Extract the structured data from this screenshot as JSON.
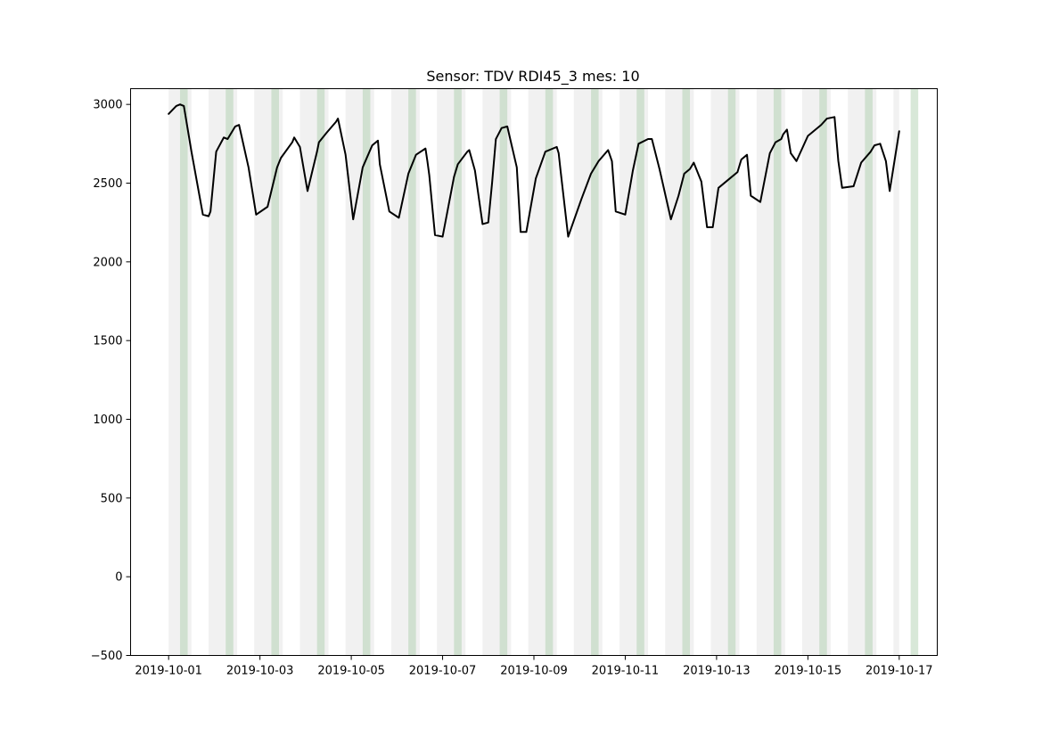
{
  "chart_data": {
    "type": "line",
    "title": "Sensor: TDV RDI45_3 mes: 10",
    "xlabel": "",
    "ylabel": "",
    "xlim": [
      "2019-10-00 04:00",
      "2019-10-17 20:00"
    ],
    "ylim": [
      -500,
      3100
    ],
    "x_ticks": [
      "2019-10-01",
      "2019-10-03",
      "2019-10-05",
      "2019-10-07",
      "2019-10-09",
      "2019-10-11",
      "2019-10-13",
      "2019-10-15",
      "2019-10-17"
    ],
    "y_ticks": [
      -500,
      0,
      500,
      1000,
      1500,
      2000,
      2500,
      3000
    ],
    "grid": false,
    "legend": "none",
    "series": [
      {
        "color": "#000000",
        "x": [
          "2019-10-01 00:00",
          "2019-10-01 04:00",
          "2019-10-01 06:00",
          "2019-10-01 08:00",
          "2019-10-01 12:00",
          "2019-10-01 18:00",
          "2019-10-01 21:00",
          "2019-10-01 22:00",
          "2019-10-02 01:00",
          "2019-10-02 05:00",
          "2019-10-02 07:00",
          "2019-10-02 11:00",
          "2019-10-02 13:00",
          "2019-10-02 18:00",
          "2019-10-02 20:00",
          "2019-10-02 22:00",
          "2019-10-03 04:00",
          "2019-10-03 09:00",
          "2019-10-03 11:00",
          "2019-10-03 17:00",
          "2019-10-03 18:00",
          "2019-10-03 21:00",
          "2019-10-04 01:00",
          "2019-10-04 06:00",
          "2019-10-04 07:00",
          "2019-10-04 11:00",
          "2019-10-04 16:00",
          "2019-10-04 17:00",
          "2019-10-04 21:00",
          "2019-10-05 01:00",
          "2019-10-05 06:00",
          "2019-10-05 11:00",
          "2019-10-05 14:00",
          "2019-10-05 15:00",
          "2019-10-05 20:00",
          "2019-10-06 01:00",
          "2019-10-06 06:00",
          "2019-10-06 10:00",
          "2019-10-06 15:00",
          "2019-10-06 16:00",
          "2019-10-06 17:00",
          "2019-10-06 20:00",
          "2019-10-07 00:00",
          "2019-10-07 06:00",
          "2019-10-07 08:00",
          "2019-10-07 13:00",
          "2019-10-07 14:00",
          "2019-10-07 17:00",
          "2019-10-07 21:00",
          "2019-10-08 00:00",
          "2019-10-08 02:00",
          "2019-10-08 04:00",
          "2019-10-08 07:00",
          "2019-10-08 10:00",
          "2019-10-08 15:00",
          "2019-10-08 17:00",
          "2019-10-08 20:00",
          "2019-10-09 01:00",
          "2019-10-09 06:00",
          "2019-10-09 12:00",
          "2019-10-09 13:00",
          "2019-10-09 14:00",
          "2019-10-09 18:00",
          "2019-10-10 01:00",
          "2019-10-10 06:00",
          "2019-10-10 10:00",
          "2019-10-10 15:00",
          "2019-10-10 17:00",
          "2019-10-10 19:00",
          "2019-10-11 00:00",
          "2019-10-11 04:00",
          "2019-10-11 07:00",
          "2019-10-11 12:00",
          "2019-10-11 14:00",
          "2019-10-11 18:00",
          "2019-10-12 00:00",
          "2019-10-12 04:00",
          "2019-10-12 07:00",
          "2019-10-12 10:00",
          "2019-10-12 12:00",
          "2019-10-12 16:00",
          "2019-10-12 19:00",
          "2019-10-12 22:00",
          "2019-10-13 01:00",
          "2019-10-13 07:00",
          "2019-10-13 11:00",
          "2019-10-13 13:00",
          "2019-10-13 16:00",
          "2019-10-13 18:00",
          "2019-10-13 23:00",
          "2019-10-14 04:00",
          "2019-10-14 07:00",
          "2019-10-14 10:00",
          "2019-10-14 11:00",
          "2019-10-14 13:00",
          "2019-10-14 15:00",
          "2019-10-14 18:00",
          "2019-10-15 00:00",
          "2019-10-15 07:00",
          "2019-10-15 10:00",
          "2019-10-15 14:00",
          "2019-10-15 16:00",
          "2019-10-15 18:00",
          "2019-10-16 00:00",
          "2019-10-16 04:00",
          "2019-10-16 09:00",
          "2019-10-16 11:00",
          "2019-10-16 14:00",
          "2019-10-16 17:00",
          "2019-10-16 19:00",
          "2019-10-17 00:00"
        ],
        "y": [
          2940,
          2990,
          3000,
          2990,
          2700,
          2300,
          2290,
          2320,
          2700,
          2790,
          2780,
          2860,
          2870,
          2600,
          2450,
          2300,
          2350,
          2600,
          2660,
          2760,
          2790,
          2730,
          2450,
          2700,
          2760,
          2820,
          2890,
          2910,
          2680,
          2270,
          2600,
          2740,
          2770,
          2620,
          2320,
          2280,
          2560,
          2680,
          2720,
          2640,
          2550,
          2170,
          2160,
          2540,
          2620,
          2700,
          2710,
          2580,
          2240,
          2250,
          2500,
          2780,
          2850,
          2860,
          2600,
          2190,
          2190,
          2530,
          2700,
          2730,
          2690,
          2580,
          2160,
          2400,
          2560,
          2640,
          2710,
          2640,
          2320,
          2300,
          2580,
          2750,
          2780,
          2780,
          2590,
          2270,
          2420,
          2560,
          2590,
          2630,
          2510,
          2220,
          2220,
          2470,
          2530,
          2570,
          2650,
          2680,
          2420,
          2380,
          2690,
          2760,
          2780,
          2810,
          2840,
          2690,
          2640,
          2800,
          2870,
          2910,
          2920,
          2640,
          2470,
          2480,
          2630,
          2700,
          2740,
          2750,
          2640,
          2450,
          2830
        ]
      }
    ],
    "shaded_bands": [
      {
        "kind": "gray",
        "color": "#dcdcdc",
        "spans": [
          [
            "2019-10-01 00:00",
            "2019-10-01 12:00"
          ],
          [
            "2019-10-01 21:00",
            "2019-10-02 12:00"
          ],
          [
            "2019-10-02 21:00",
            "2019-10-03 12:00"
          ],
          [
            "2019-10-03 21:00",
            "2019-10-04 12:00"
          ],
          [
            "2019-10-04 21:00",
            "2019-10-05 12:00"
          ],
          [
            "2019-10-05 21:00",
            "2019-10-06 12:00"
          ],
          [
            "2019-10-06 21:00",
            "2019-10-07 12:00"
          ],
          [
            "2019-10-07 21:00",
            "2019-10-08 12:00"
          ],
          [
            "2019-10-08 21:00",
            "2019-10-09 12:00"
          ],
          [
            "2019-10-09 21:00",
            "2019-10-10 12:00"
          ],
          [
            "2019-10-10 21:00",
            "2019-10-11 12:00"
          ],
          [
            "2019-10-11 21:00",
            "2019-10-12 12:00"
          ],
          [
            "2019-10-12 21:00",
            "2019-10-13 12:00"
          ],
          [
            "2019-10-13 21:00",
            "2019-10-14 12:00"
          ],
          [
            "2019-10-14 21:00",
            "2019-10-15 12:00"
          ],
          [
            "2019-10-15 21:00",
            "2019-10-16 12:00"
          ],
          [
            "2019-10-16 21:00",
            "2019-10-17 00:00"
          ]
        ]
      },
      {
        "kind": "green",
        "color": "#a9cca9",
        "spans": [
          [
            "2019-10-01 06:00",
            "2019-10-01 10:00"
          ],
          [
            "2019-10-02 06:00",
            "2019-10-02 10:00"
          ],
          [
            "2019-10-03 06:00",
            "2019-10-03 10:00"
          ],
          [
            "2019-10-04 06:00",
            "2019-10-04 10:00"
          ],
          [
            "2019-10-05 06:00",
            "2019-10-05 10:00"
          ],
          [
            "2019-10-06 06:00",
            "2019-10-06 10:00"
          ],
          [
            "2019-10-07 06:00",
            "2019-10-07 10:00"
          ],
          [
            "2019-10-08 06:00",
            "2019-10-08 10:00"
          ],
          [
            "2019-10-09 06:00",
            "2019-10-09 10:00"
          ],
          [
            "2019-10-10 06:00",
            "2019-10-10 10:00"
          ],
          [
            "2019-10-11 06:00",
            "2019-10-11 10:00"
          ],
          [
            "2019-10-12 06:00",
            "2019-10-12 10:00"
          ],
          [
            "2019-10-13 06:00",
            "2019-10-13 10:00"
          ],
          [
            "2019-10-14 06:00",
            "2019-10-14 10:00"
          ],
          [
            "2019-10-15 06:00",
            "2019-10-15 10:00"
          ],
          [
            "2019-10-16 06:00",
            "2019-10-16 10:00"
          ],
          [
            "2019-10-17 06:00",
            "2019-10-17 10:00"
          ]
        ]
      }
    ]
  }
}
